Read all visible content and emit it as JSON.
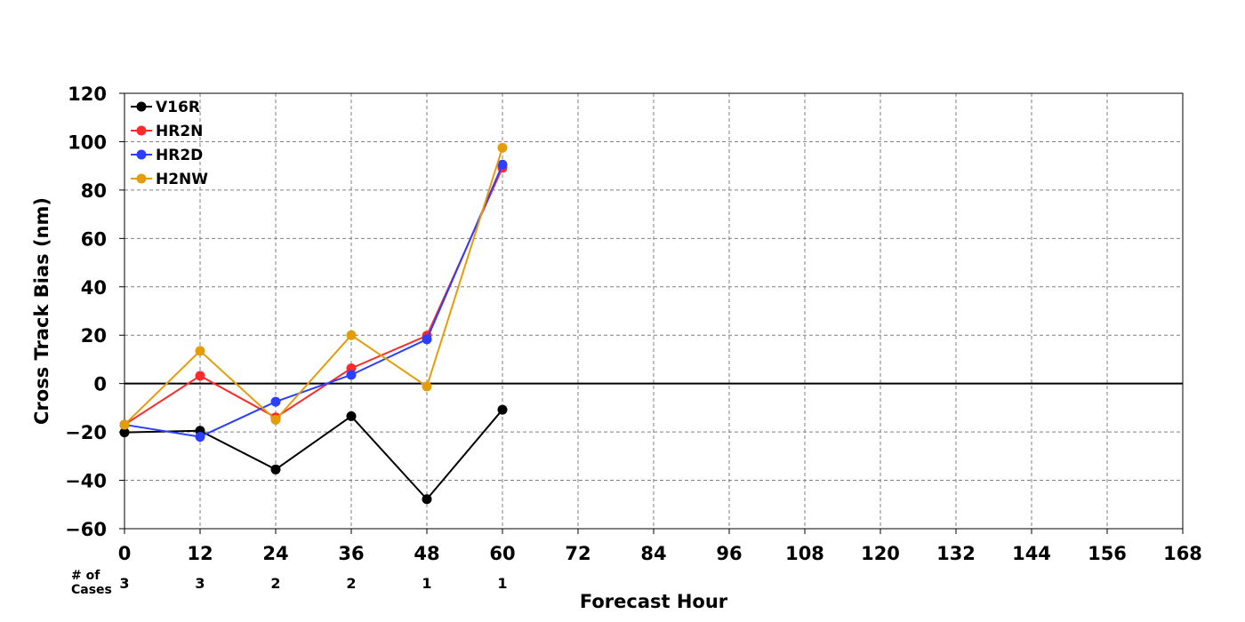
{
  "chart_data": {
    "type": "line",
    "xlabel": "Forecast Hour",
    "ylabel": "Cross Track Bias (nm)",
    "xlim": [
      0,
      168
    ],
    "ylim": [
      -60,
      120
    ],
    "xticks": [
      0,
      12,
      24,
      36,
      48,
      60,
      72,
      84,
      96,
      108,
      120,
      132,
      144,
      156,
      168
    ],
    "yticks": [
      -60,
      -40,
      -20,
      0,
      20,
      40,
      60,
      80,
      100,
      120
    ],
    "xtick_labels": [
      "0",
      "12",
      "24",
      "36",
      "48",
      "60",
      "72",
      "84",
      "96",
      "108",
      "120",
      "132",
      "144",
      "156",
      "168"
    ],
    "ytick_labels": [
      "−60",
      "−40",
      "−20",
      "0",
      "20",
      "40",
      "60",
      "80",
      "100",
      "120"
    ],
    "grid": true,
    "grid_style": "dashed",
    "zero_line": true,
    "legend_position": "top-left",
    "x": [
      0,
      12,
      24,
      36,
      48,
      60
    ],
    "series": [
      {
        "name": "V16R",
        "color": "#000000",
        "values": [
          -20.2,
          -19.5,
          -35.5,
          -13.5,
          -47.8,
          -10.8
        ]
      },
      {
        "name": "HR2N",
        "color": "#ff2a2a",
        "values": [
          -17.0,
          3.2,
          -14.0,
          6.3,
          19.8,
          89.2
        ]
      },
      {
        "name": "HR2D",
        "color": "#2a3fff",
        "values": [
          -17.0,
          -22.0,
          -7.5,
          3.6,
          18.3,
          90.5
        ]
      },
      {
        "name": "H2NW",
        "color": "#e59c09",
        "values": [
          -17.0,
          13.5,
          -15.0,
          20.0,
          -1.2,
          97.5
        ]
      }
    ],
    "cases": {
      "label_line1": "# of",
      "label_line2": "Cases",
      "hours": [
        0,
        12,
        24,
        36,
        48,
        60
      ],
      "counts": [
        "3",
        "3",
        "2",
        "2",
        "1",
        "1"
      ]
    }
  }
}
